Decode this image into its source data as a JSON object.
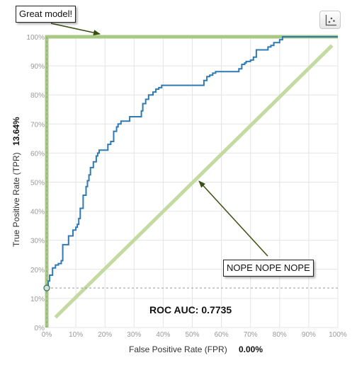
{
  "chart_data": {
    "type": "line",
    "xlabel": "False Positive Rate (FPR)",
    "ylabel": "True Positive Rate (TPR)",
    "x_value_label": "0.00%",
    "y_value_label": "13.64%",
    "xlim": [
      0,
      100
    ],
    "ylim": [
      0,
      100
    ],
    "grid": true,
    "x_ticks": [
      "0%",
      "10%",
      "20%",
      "30%",
      "40%",
      "50%",
      "60%",
      "70%",
      "80%",
      "90%",
      "100%"
    ],
    "y_ticks": [
      "0%",
      "10%",
      "20%",
      "30%",
      "40%",
      "50%",
      "60%",
      "70%",
      "80%",
      "90%",
      "100%"
    ],
    "auc_label": "ROC AUC: 0.7735",
    "series": [
      {
        "color": "#2f7ab5",
        "x": [
          0,
          0.5,
          0.5,
          1,
          1,
          2,
          2,
          3,
          3,
          4,
          4,
          5,
          5,
          5.5,
          5.5,
          7.5,
          7.5,
          9,
          9,
          10,
          10,
          10.5,
          10.5,
          11,
          11,
          11.5,
          11.5,
          12.5,
          12.5,
          13.5,
          13.5,
          14,
          14,
          14.5,
          14.5,
          15,
          15,
          16,
          16,
          17,
          17,
          17.5,
          17.5,
          18,
          18,
          18.5,
          18.5,
          21,
          21,
          22,
          22,
          23,
          23,
          24,
          24,
          24.5,
          24.5,
          25.5,
          25.5,
          27.5,
          27.5,
          28.5,
          28.5,
          29.5,
          29.5,
          32.5,
          32.5,
          33,
          33,
          34,
          34,
          35,
          35,
          36.5,
          36.5,
          37.5,
          37.5,
          38.5,
          38.5,
          39.5,
          39.5,
          42,
          42,
          48,
          48,
          54,
          54,
          55,
          55,
          56,
          56,
          57,
          57,
          58,
          58,
          64,
          64,
          66,
          66,
          67,
          67,
          68,
          68,
          68.5,
          68.5,
          70,
          70,
          71,
          71,
          72,
          72,
          75,
          75,
          76,
          76,
          77,
          77,
          78,
          78,
          80,
          80,
          81,
          81,
          100
        ],
        "y": [
          13.6,
          13.6,
          16,
          16,
          18,
          18,
          20.5,
          20.5,
          21.5,
          21.5,
          22,
          22,
          23,
          23,
          28.5,
          28.5,
          31.5,
          31.5,
          33.5,
          33.5,
          34.5,
          34.5,
          35.5,
          35.5,
          37.5,
          37.5,
          41,
          41,
          45.5,
          45.5,
          48.5,
          48.5,
          50.5,
          50.5,
          52.5,
          52.5,
          55,
          55,
          57,
          57,
          59,
          59,
          60,
          60,
          61,
          61,
          61,
          61,
          63,
          63,
          64,
          64,
          67.5,
          67.5,
          69,
          69,
          70,
          70,
          71,
          71,
          71,
          71,
          72.5,
          72.5,
          72.5,
          72.5,
          74.5,
          74.5,
          77,
          77,
          78.5,
          78.5,
          80,
          80,
          81,
          81,
          82,
          82,
          82.5,
          82.5,
          83.3,
          83.3,
          83.3,
          83.3,
          83.3,
          83.3,
          85,
          85,
          86.3,
          86.3,
          86.8,
          86.8,
          87.5,
          87.5,
          88,
          88,
          88,
          88,
          89,
          89,
          90.5,
          90.5,
          91,
          91,
          91.5,
          91.5,
          92,
          92,
          93,
          93,
          95.5,
          95.5,
          95.5,
          95.5,
          96.5,
          96.5,
          97,
          97,
          98,
          98,
          99,
          99,
          100,
          100
        ]
      },
      {
        "color": "#a8c983",
        "x": [
          0,
          0,
          100
        ],
        "y": [
          0,
          100,
          100
        ]
      },
      {
        "color": "#c3dba0",
        "x": [
          3,
          98
        ],
        "y": [
          3.5,
          97
        ]
      }
    ],
    "marker": {
      "x": 0,
      "y": 13.6
    },
    "annotations": [
      {
        "text": "Great model!"
      },
      {
        "text": "NOPE NOPE NOPE"
      }
    ]
  },
  "toolbar": {
    "scatter_toggle_icon": "scatter-plot-icon"
  }
}
